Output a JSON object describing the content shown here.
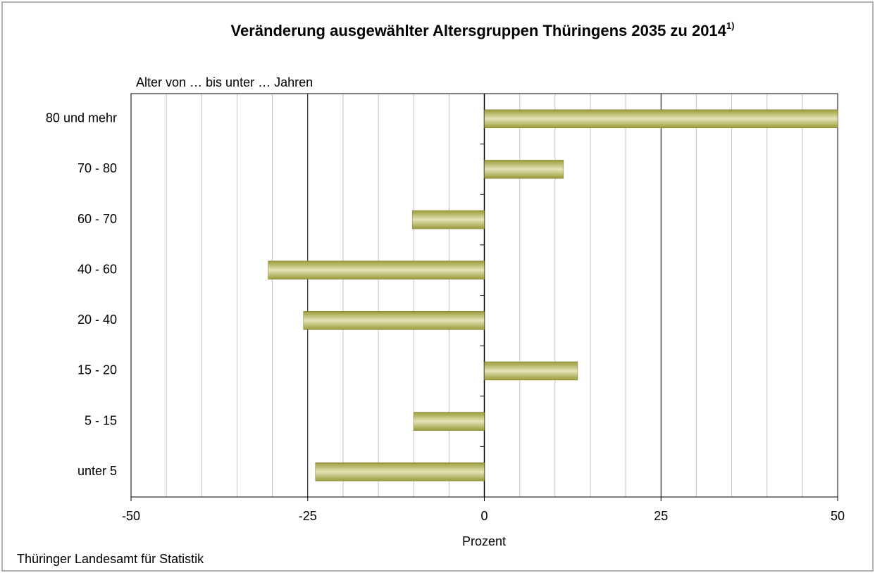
{
  "chart_data": {
    "type": "hbar",
    "title": "Veränderung ausgewählter Altersgruppen Thüringens 2035 zu 2014",
    "title_footnote_mark": "1)",
    "y_axis_label": "Alter von … bis unter … Jahren",
    "x_axis_label": "Prozent",
    "source": "Thüringer Landesamt für Statistik",
    "categories": [
      "80 und mehr",
      "70 - 80",
      "60 - 70",
      "40 - 60",
      "20 - 40",
      "15 - 20",
      "5 - 15",
      "unter 5"
    ],
    "values": [
      50,
      11.2,
      -10.2,
      -30.6,
      -25.6,
      13.2,
      -10,
      -23.9
    ],
    "color": "#9a9a38",
    "xlim": [
      -50,
      50
    ],
    "xticks": [
      -50,
      -25,
      0,
      25,
      50
    ],
    "xminorticks": [
      -45,
      -40,
      -35,
      -30,
      -20,
      -15,
      -10,
      -5,
      5,
      10,
      15,
      20,
      30,
      35,
      40,
      45
    ],
    "grid": true
  }
}
